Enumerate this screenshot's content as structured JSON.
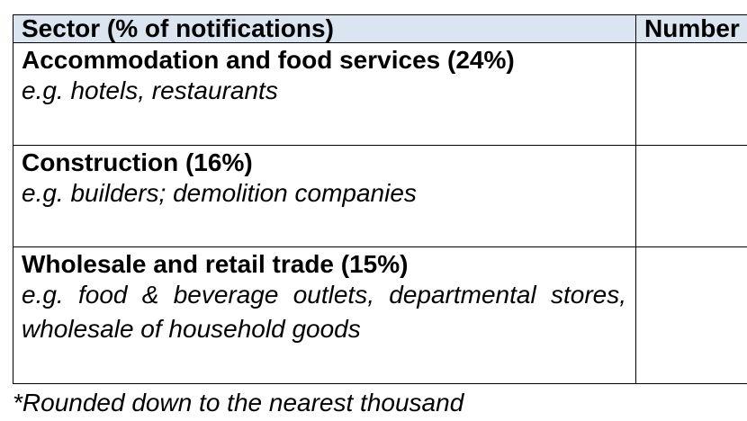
{
  "table": {
    "header": {
      "sector": "Sector (% of notifications)",
      "number": "Number"
    },
    "rows": [
      {
        "sector": "Accommodation and food services (24%)",
        "example": "e.g. hotels, restaurants",
        "number": ""
      },
      {
        "sector": "Construction (16%)",
        "example": "e.g. builders; demolition companies",
        "number": ""
      },
      {
        "sector": "Wholesale and retail trade (15%)",
        "example": "e.g. food & beverage outlets, departmental stores, wholesale of household goods",
        "number": ""
      }
    ]
  },
  "footnote": "*Rounded down to the nearest thousand",
  "colors": {
    "header_background": "#dbe5f1",
    "border": "#000000",
    "text": "#000000"
  }
}
